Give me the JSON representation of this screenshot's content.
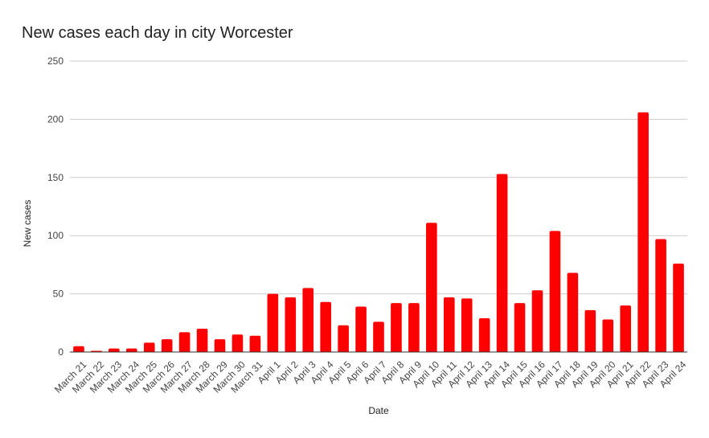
{
  "chart_data": {
    "type": "bar",
    "title": "New cases each day in city Worcester",
    "xlabel": "Date",
    "ylabel": "New cases",
    "ylim": [
      0,
      250
    ],
    "yticks": [
      0,
      50,
      100,
      150,
      200,
      250
    ],
    "grid": true,
    "bar_color": "#ff0000",
    "categories": [
      "March 21",
      "March 22",
      "March 23",
      "March 24",
      "March 25",
      "March 26",
      "March 27",
      "March 28",
      "March 29",
      "March 30",
      "March 31",
      "April 1",
      "April 2",
      "April 3",
      "April 4",
      "April 5",
      "April 6",
      "April 7",
      "April 8",
      "April 9",
      "April 10",
      "April 11",
      "April 12",
      "April 13",
      "April 14",
      "April 15",
      "April 16",
      "April 17",
      "April 18",
      "April 19",
      "April 20",
      "April 21",
      "April 22",
      "April 23",
      "April 24"
    ],
    "values": [
      5,
      1,
      3,
      3,
      8,
      11,
      17,
      20,
      11,
      15,
      14,
      50,
      47,
      55,
      43,
      23,
      39,
      26,
      42,
      42,
      111,
      47,
      46,
      29,
      153,
      42,
      53,
      104,
      68,
      36,
      28,
      40,
      206,
      97,
      76
    ]
  }
}
